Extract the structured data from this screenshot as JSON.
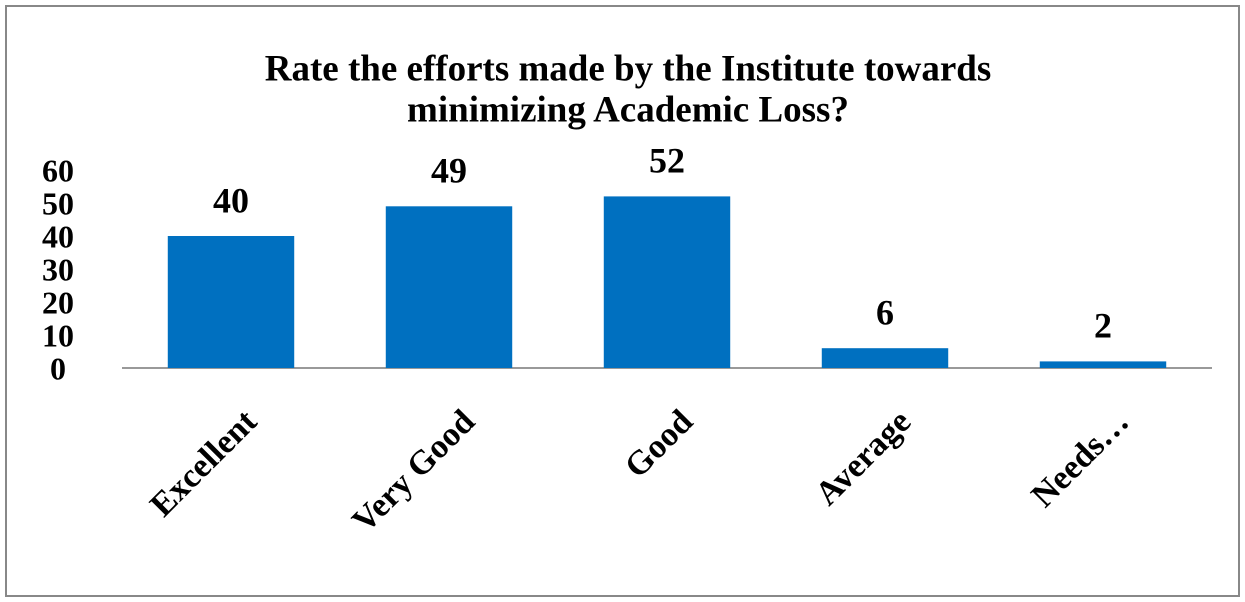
{
  "chart_data": {
    "type": "bar",
    "title": [
      "Rate the efforts made by the Institute towards",
      "minimizing Academic Loss?"
    ],
    "categories": [
      "Excellent",
      "Very Good",
      "Good",
      "Average",
      "Needs…"
    ],
    "values": [
      40,
      49,
      52,
      6,
      2
    ],
    "color": "#0070c0",
    "ylim": [
      0,
      60
    ],
    "yticks": [
      0,
      10,
      20,
      30,
      40,
      50,
      60
    ],
    "grid": false
  }
}
